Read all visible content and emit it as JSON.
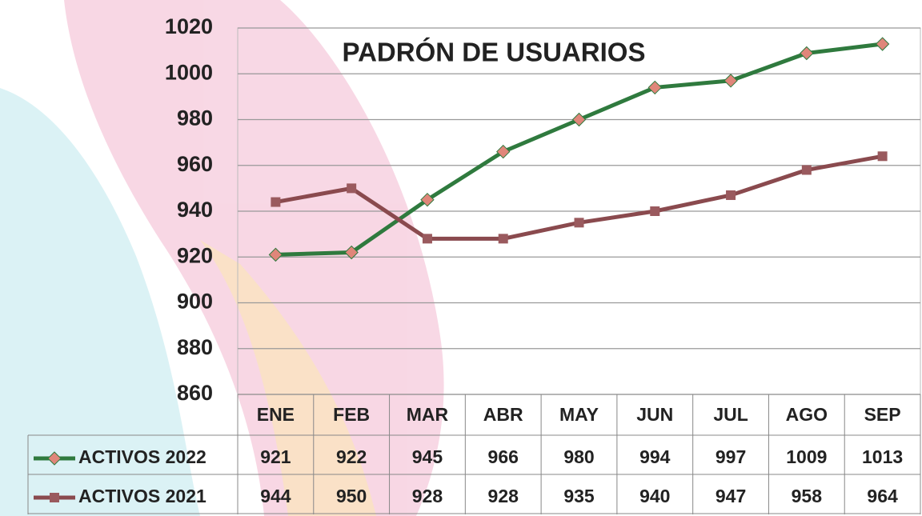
{
  "chart_data": {
    "type": "line",
    "title": "PADRÓN DE USUARIOS",
    "categories": [
      "ENE",
      "FEB",
      "MAR",
      "ABR",
      "MAY",
      "JUN",
      "JUL",
      "AGO",
      "SEP"
    ],
    "series": [
      {
        "name": "ACTIVOS 2022",
        "color": "#2f7a3e",
        "marker_color": "#e0867a",
        "marker": "diamond",
        "values": [
          921,
          922,
          945,
          966,
          980,
          994,
          997,
          1009,
          1013
        ]
      },
      {
        "name": "ACTIVOS 2021",
        "color": "#8a4a4e",
        "marker_color": "#9a5a5e",
        "marker": "square",
        "values": [
          944,
          950,
          928,
          928,
          935,
          940,
          947,
          958,
          964
        ]
      }
    ],
    "ylim": [
      860,
      1020
    ],
    "yticks": [
      860,
      880,
      900,
      920,
      940,
      960,
      980,
      1000,
      1020
    ],
    "grid": true,
    "data_table": true
  }
}
